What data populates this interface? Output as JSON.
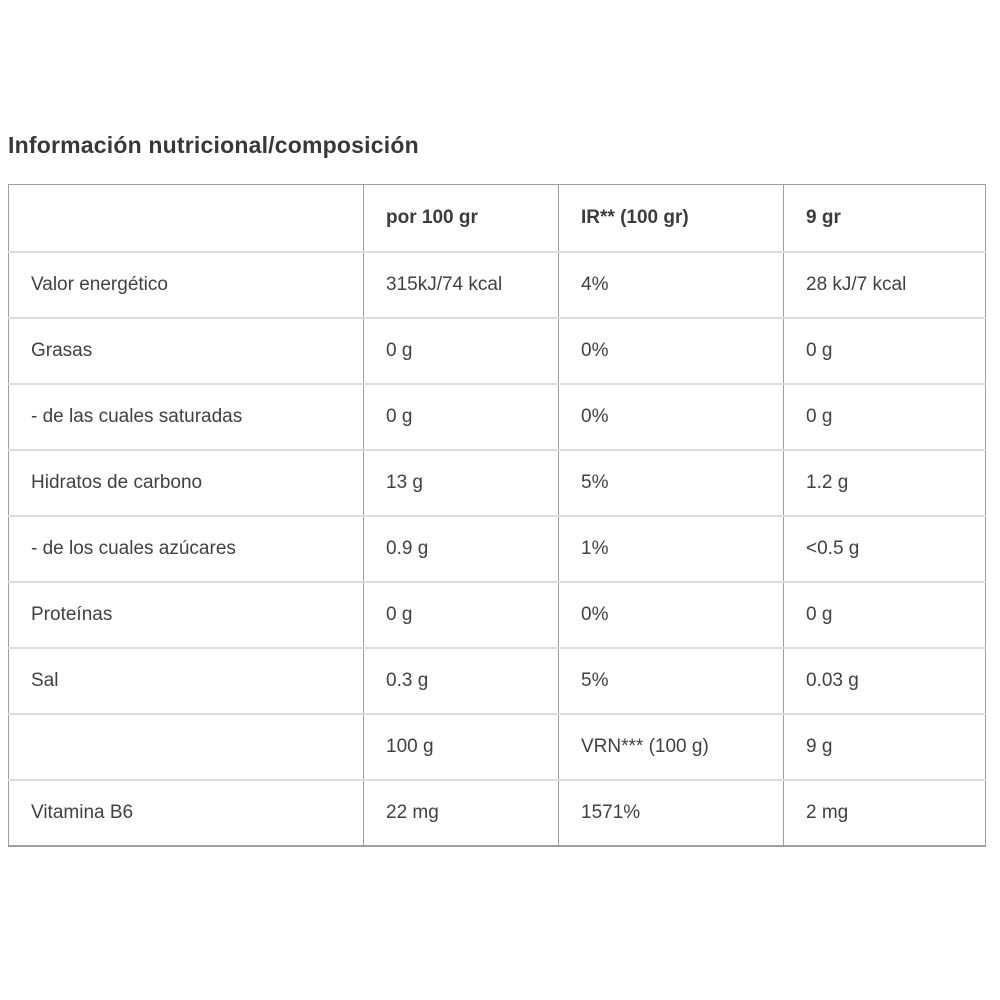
{
  "page": {
    "title": "Información nutricional/composición"
  },
  "colors": {
    "background": "#ffffff",
    "title_text": "#383838",
    "cell_text": "#414141",
    "border_dark": "#9e9e9e",
    "border_light": "#dcdcdc"
  },
  "chart_data": {
    "type": "table",
    "title": "Información nutricional/composición",
    "columns": [
      "",
      "por 100 gr",
      "IR** (100 gr)",
      "9 gr"
    ],
    "rows": [
      {
        "label": "Valor energético",
        "per100": "315kJ/74 kcal",
        "ir": "4%",
        "per9": "28 kJ/7 kcal"
      },
      {
        "label": "Grasas",
        "per100": "0 g",
        "ir": "0%",
        "per9": "0 g"
      },
      {
        "label": "- de las cuales saturadas",
        "per100": "0 g",
        "ir": "0%",
        "per9": "0 g"
      },
      {
        "label": "Hidratos de carbono",
        "per100": "13 g",
        "ir": "5%",
        "per9": "1.2 g"
      },
      {
        "label": "- de los cuales azúcares",
        "per100": "0.9 g",
        "ir": "1%",
        "per9": "<0.5 g"
      },
      {
        "label": "Proteínas",
        "per100": "0 g",
        "ir": "0%",
        "per9": "0 g"
      },
      {
        "label": "Sal",
        "per100": "0.3 g",
        "ir": "5%",
        "per9": "0.03 g"
      },
      {
        "label": "",
        "per100": "100 g",
        "ir": "VRN*** (100 g)",
        "per9": "9 g"
      },
      {
        "label": "Vitamina B6",
        "per100": "22 mg",
        "ir": "1571%",
        "per9": "2 mg"
      }
    ]
  }
}
